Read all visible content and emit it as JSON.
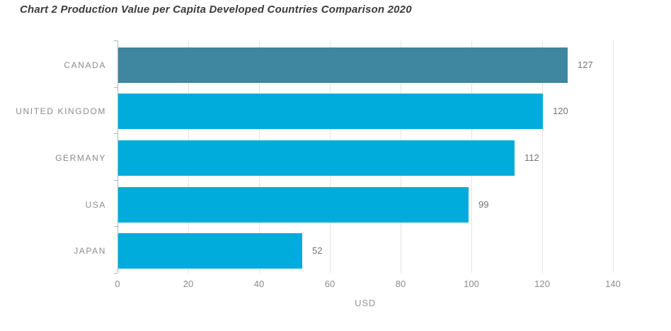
{
  "title": "Chart 2 Production Value per Capita Developed Countries Comparison 2020",
  "chart_data": {
    "type": "bar",
    "orientation": "horizontal",
    "categories": [
      "CANADA",
      "UNITED KINGDOM",
      "GERMANY",
      "USA",
      "JAPAN"
    ],
    "values": [
      127,
      120,
      112,
      99,
      52
    ],
    "value_labels": [
      "127",
      "120",
      "112",
      "99",
      "52"
    ],
    "xlabel": "USD",
    "xlim": [
      0,
      140
    ],
    "xticks": [
      0,
      20,
      40,
      60,
      80,
      100,
      120,
      140
    ],
    "grid": "vertical-only",
    "legend": "none",
    "bar_colors": [
      "#3F86A1",
      "#00ACDC",
      "#00ACDC",
      "#00ACDC",
      "#00ACDC"
    ]
  },
  "colors": {
    "highlight_bar": "#3F86A1",
    "default_bar": "#00ACDC",
    "gridline": "#e4e4e4",
    "axis_line": "#b6b6b6",
    "category_label": "#8c8c8c",
    "value_label": "#747474",
    "title_text": "#3b3b3b",
    "background": "#ffffff"
  }
}
